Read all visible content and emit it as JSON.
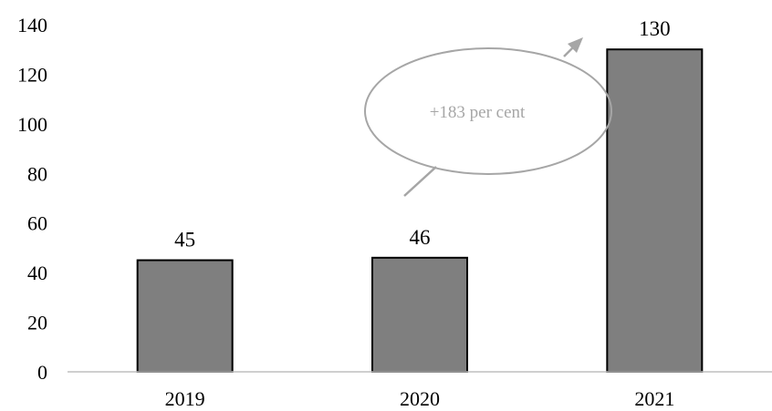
{
  "chart_data": {
    "type": "bar",
    "categories": [
      "2019",
      "2020",
      "2021"
    ],
    "values": [
      45,
      46,
      130
    ],
    "data_labels": [
      "45",
      "46",
      "130"
    ],
    "title": "",
    "xlabel": "",
    "ylabel": "",
    "ylim": [
      0,
      140
    ],
    "yticks": [
      0,
      20,
      40,
      60,
      80,
      100,
      120,
      140
    ],
    "grid": false,
    "legend": "none",
    "bar_color": "#7f7f7f",
    "bar_edge_color": "#000000",
    "annotation": {
      "text": "+183 per cent",
      "shape": "ellipse",
      "text_color": "#a6a6a6",
      "outline_color": "#a6a6a6",
      "arrow_color": "#a6a6a6"
    }
  }
}
